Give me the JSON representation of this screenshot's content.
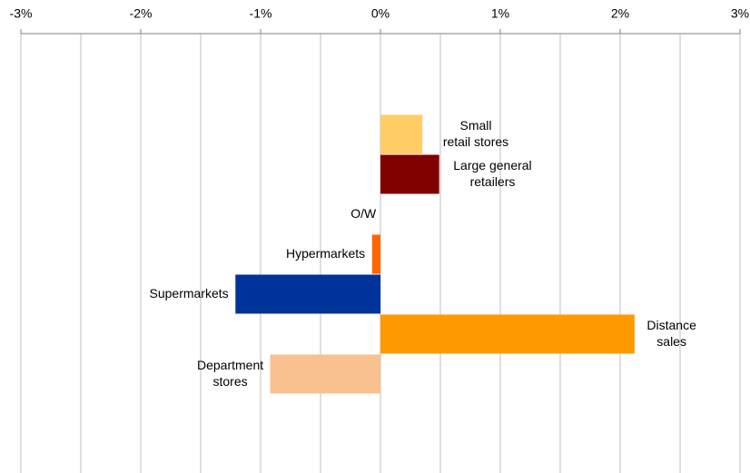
{
  "chart_data": {
    "type": "hbar",
    "categories": [
      "Small\nretail stores",
      "Large general\nretailers",
      "O/W",
      "Hypermarkets",
      "Supermarkets",
      "Distance\nsales",
      "Department\nstores"
    ],
    "values": [
      0.35,
      0.49,
      0,
      -0.07,
      -1.21,
      2.12,
      -0.92
    ],
    "colors": [
      "#ffcc66",
      "#800000",
      "#ff6600",
      "#ff6600",
      "#003399",
      "#ff9900",
      "#f9c090"
    ],
    "xlim": [
      -3,
      3
    ],
    "xticks": [
      {
        "value": -3,
        "label": "-3%"
      },
      {
        "value": -2,
        "label": "-2%"
      },
      {
        "value": -1,
        "label": "-1%"
      },
      {
        "value": 0,
        "label": "0%"
      },
      {
        "value": 1,
        "label": "1%"
      },
      {
        "value": 2,
        "label": "2%"
      },
      {
        "value": 3,
        "label": "3%"
      }
    ],
    "minor_xticks": [
      -2.5,
      -1.5,
      -0.5,
      0.5,
      1.5,
      2.5
    ],
    "grid": true,
    "axis_position": "top"
  }
}
